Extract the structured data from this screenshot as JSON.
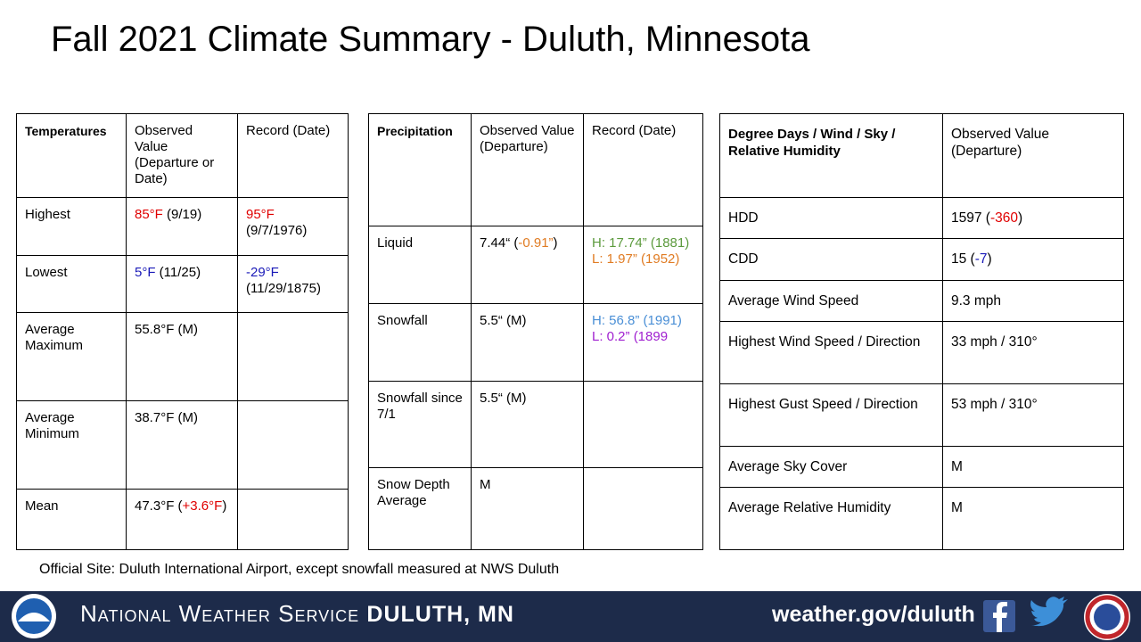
{
  "header": {
    "title": "Fall 2021 Climate Summary - Duluth, Minnesota"
  },
  "tables": [
    {
      "header": [
        "Temperatures",
        "Observed Value (Departure or Date)",
        "Record (Date)"
      ],
      "rows": [
        [
          "Highest",
          [
            [
              {
                "text": "85°F",
                "color": "#e00000"
              },
              " (9/19)"
            ]
          ],
          [
            [
              {
                "text": "95°F",
                "color": "#e00000"
              }
            ],
            "(9/7/1976)"
          ]
        ],
        [
          "Lowest",
          [
            [
              {
                "text": "5°F",
                "color": "#1a1ab8"
              },
              " (11/25)"
            ]
          ],
          [
            [
              {
                "text": "-29°F",
                "color": "#1a1ab8"
              }
            ],
            "(11/29/1875)"
          ]
        ],
        [
          "Average Maximum",
          "55.8°F (M)",
          null
        ],
        [
          "Average Minimum",
          "38.7°F (M)",
          null
        ],
        [
          "Mean",
          [
            [
              "47.3°F (",
              {
                "text": "+3.6°F",
                "color": "#e00000"
              },
              ")"
            ]
          ],
          null
        ]
      ]
    },
    {
      "header": [
        "Precipitation",
        "Observed Value (Departure)",
        "Record (Date)"
      ],
      "rows": [
        [
          "Liquid",
          [
            [
              "7.44“ (",
              {
                "text": "-0.91”",
                "color": "#e07b22"
              },
              ")"
            ]
          ],
          [
            [
              {
                "text": "H: 17.74” (1881)",
                "color": "#5b9a3c"
              }
            ],
            [
              {
                "text": "L: 1.97” (1952)",
                "color": "#e07b22"
              }
            ]
          ]
        ],
        [
          "Snowfall",
          "5.5“ (M)",
          [
            [
              {
                "text": "H: 56.8” (1991)",
                "color": "#4a8fd6"
              }
            ],
            [
              {
                "text": "L: 0.2” (1899",
                "color": "#a020d0"
              }
            ]
          ]
        ],
        [
          "Snowfall since 7/1",
          "5.5“ (M)",
          null
        ],
        [
          "Snow Depth Average",
          "M",
          null
        ]
      ]
    },
    {
      "header": [
        "Degree Days / Wind / Sky / Relative Humidity",
        "Observed Value (Departure)"
      ],
      "rows": [
        [
          "HDD",
          [
            [
              "1597 (",
              {
                "text": "-360",
                "color": "#e00000"
              },
              ")"
            ]
          ]
        ],
        [
          "CDD",
          [
            [
              "15 (",
              {
                "text": "-7",
                "color": "#1a1ab8"
              },
              ")"
            ]
          ]
        ],
        [
          "Average Wind Speed",
          "9.3 mph"
        ],
        [
          "Highest Wind Speed / Direction",
          "33 mph / 310°"
        ],
        [
          "Highest Gust Speed / Direction",
          "53 mph / 310°"
        ],
        [
          "Average Sky Cover",
          "M"
        ],
        [
          "Average Relative Humidity",
          "M"
        ]
      ]
    }
  ],
  "note": "Official Site: Duluth International Airport, except snowfall measured at NWS Duluth",
  "footer": {
    "org": "National Weather Service",
    "office": "DULUTH, MN",
    "url": "weather.gov/duluth"
  }
}
